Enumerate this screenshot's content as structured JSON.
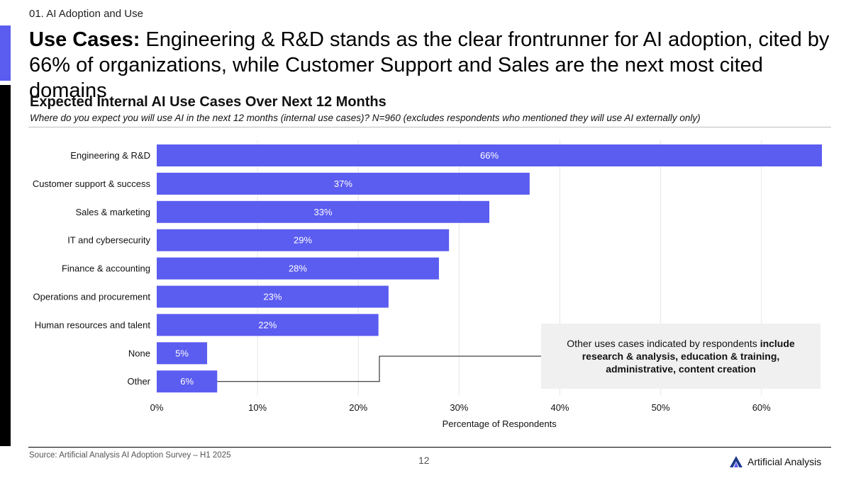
{
  "section_label": "01. AI Adoption and Use",
  "headline": {
    "bold": "Use Cases:",
    "rest": " Engineering & R&D stands as the clear frontrunner for AI adoption, cited by 66% of organizations, while Customer Support and Sales are the next most cited domains"
  },
  "chart_data": {
    "type": "bar",
    "orientation": "horizontal",
    "title": "Expected Internal AI Use Cases Over Next 12 Months",
    "subtitle": "Where do you expect you will use AI in the next 12 months (internal use cases)? N=960 (excludes respondents who mentioned they will use AI externally only)",
    "categories": [
      "Engineering & R&D",
      "Customer support & success",
      "Sales & marketing",
      "IT and cybersecurity",
      "Finance & accounting",
      "Operations and procurement",
      "Human resources and talent",
      "None",
      "Other"
    ],
    "values": [
      66,
      37,
      33,
      29,
      28,
      23,
      22,
      5,
      6
    ],
    "data_labels": [
      "66%",
      "37%",
      "33%",
      "29%",
      "28%",
      "23%",
      "22%",
      "5%",
      "6%"
    ],
    "xlabel": "Percentage of Respondents",
    "ylabel": "",
    "xlim": [
      0,
      66
    ],
    "ticks": [
      0,
      10,
      20,
      30,
      40,
      50,
      60
    ],
    "tick_labels": [
      "0%",
      "10%",
      "20%",
      "30%",
      "40%",
      "50%",
      "60%"
    ],
    "grid": true,
    "bar_color": "#5b5cf0",
    "label_color_inside": "#ffffff",
    "label_color_outside": "#111111"
  },
  "callout": {
    "text_plain": "Other uses cases indicated by respondents ",
    "text_bold": "include research & analysis, education & training, administrative, content creation"
  },
  "footer": {
    "source": "Source: Artificial Analysis AI Adoption Survey – H1 2025",
    "page_number": "12",
    "brand": "Artificial Analysis"
  },
  "colors": {
    "accent_blue": "#5b5cf0",
    "accent_black": "#000000"
  }
}
